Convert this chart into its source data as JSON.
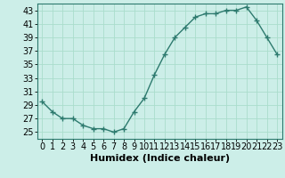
{
  "x": [
    0,
    1,
    2,
    3,
    4,
    5,
    6,
    7,
    8,
    9,
    10,
    11,
    12,
    13,
    14,
    15,
    16,
    17,
    18,
    19,
    20,
    21,
    22,
    23
  ],
  "y": [
    29.5,
    28.0,
    27.0,
    27.0,
    26.0,
    25.5,
    25.5,
    25.0,
    25.5,
    28.0,
    30.0,
    33.5,
    36.5,
    39.0,
    40.5,
    42.0,
    42.5,
    42.5,
    43.0,
    43.0,
    43.5,
    41.5,
    39.0,
    36.5
  ],
  "line_color": "#2d7a6e",
  "marker": "+",
  "marker_size": 4,
  "bg_color": "#cceee8",
  "grid_color": "#aaddcc",
  "xlabel": "Humidex (Indice chaleur)",
  "xlim": [
    -0.5,
    23.5
  ],
  "ylim": [
    24,
    44
  ],
  "yticks": [
    25,
    27,
    29,
    31,
    33,
    35,
    37,
    39,
    41,
    43
  ],
  "xtick_labels": [
    "0",
    "1",
    "2",
    "3",
    "4",
    "5",
    "6",
    "7",
    "8",
    "9",
    "10",
    "11",
    "12",
    "13",
    "14",
    "15",
    "16",
    "17",
    "18",
    "19",
    "20",
    "21",
    "22",
    "23"
  ],
  "xlabel_fontsize": 8,
  "tick_fontsize": 7,
  "line_width": 1.0,
  "spine_color": "#2d7a6e"
}
